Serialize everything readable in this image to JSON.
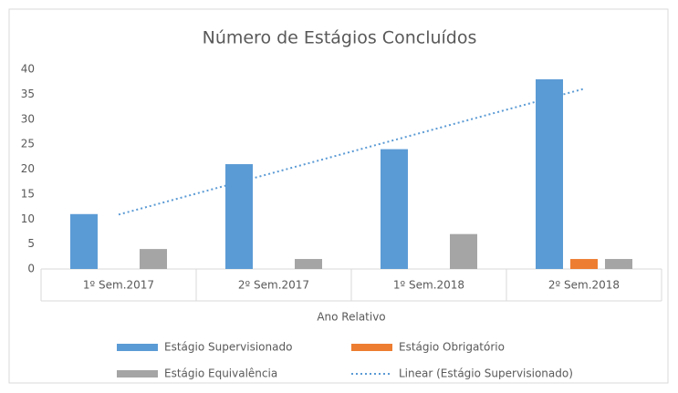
{
  "chart_data": {
    "type": "bar",
    "title": "Número de Estágios Concluídos",
    "x_label": "Ano Relativo",
    "categories": [
      "1º Sem.2017",
      "2º Sem.2017",
      "1º Sem.2018",
      "2º Sem.2018"
    ],
    "series": [
      {
        "name": "Estágio Supervisionado",
        "color": "#5b9bd5",
        "values": [
          11,
          21,
          24,
          38
        ]
      },
      {
        "name": "Estágio Obrigatório",
        "color": "#ed7d31",
        "values": [
          0,
          0,
          0,
          2
        ]
      },
      {
        "name": "Estágio Equivalência",
        "color": "#a5a5a5",
        "values": [
          4,
          2,
          7,
          2
        ]
      },
      {
        "name": "Linear (Estágio Supervisionado)",
        "color": "#5b9bd5",
        "type": "line",
        "values": [
          10.9,
          19.3,
          27.7,
          36.1
        ]
      }
    ],
    "ylim": [
      0,
      40
    ],
    "yticks": [
      0,
      5,
      10,
      15,
      20,
      25,
      30,
      35,
      40
    ],
    "grid": false,
    "legend": "bottom"
  }
}
